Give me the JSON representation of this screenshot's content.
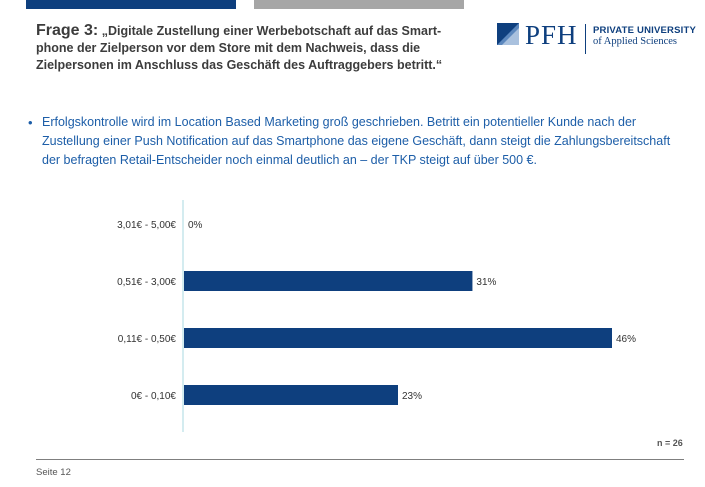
{
  "header": {
    "title_lead": "Frage 3:",
    "title_rest": "„Digitale Zustellung einer Werbebotschaft auf das Smart-phone der Zielperson vor dem Store mit dem Nachweis, dass die Zielpersonen im Anschluss das Geschäft des Auftraggebers betritt.“"
  },
  "logo": {
    "wordmark": "PFH",
    "line1": "PRIVATE UNIVERSITY",
    "line2": "of Applied Sciences"
  },
  "bullet": {
    "text": "Erfolgskontrolle wird im Location Based Marketing groß geschrieben. Betritt ein potentieller Kunde nach der Zustellung einer Push Notification auf das Smartphone das eigene Geschäft, dann steigt die Zahlungsbereitschaft der befragten Retail-Entscheider noch einmal deutlich an – der TKP steigt auf über 500 €."
  },
  "chart_data": {
    "type": "bar",
    "orientation": "horizontal",
    "categories": [
      "3,01€ - 5,00€",
      "0,51€ - 3,00€",
      "0,11€ - 0,50€",
      "0€ - 0,10€"
    ],
    "values": [
      0,
      31,
      46,
      23
    ],
    "data_labels": [
      "0%",
      "31%",
      "46%",
      "23%"
    ],
    "unit": "%",
    "xlim": [
      0,
      46
    ],
    "bar_color": "#0e3f7e",
    "grid": false,
    "legend": "none"
  },
  "note": {
    "n": "n = 26"
  },
  "footer": {
    "page": "Seite 12"
  }
}
